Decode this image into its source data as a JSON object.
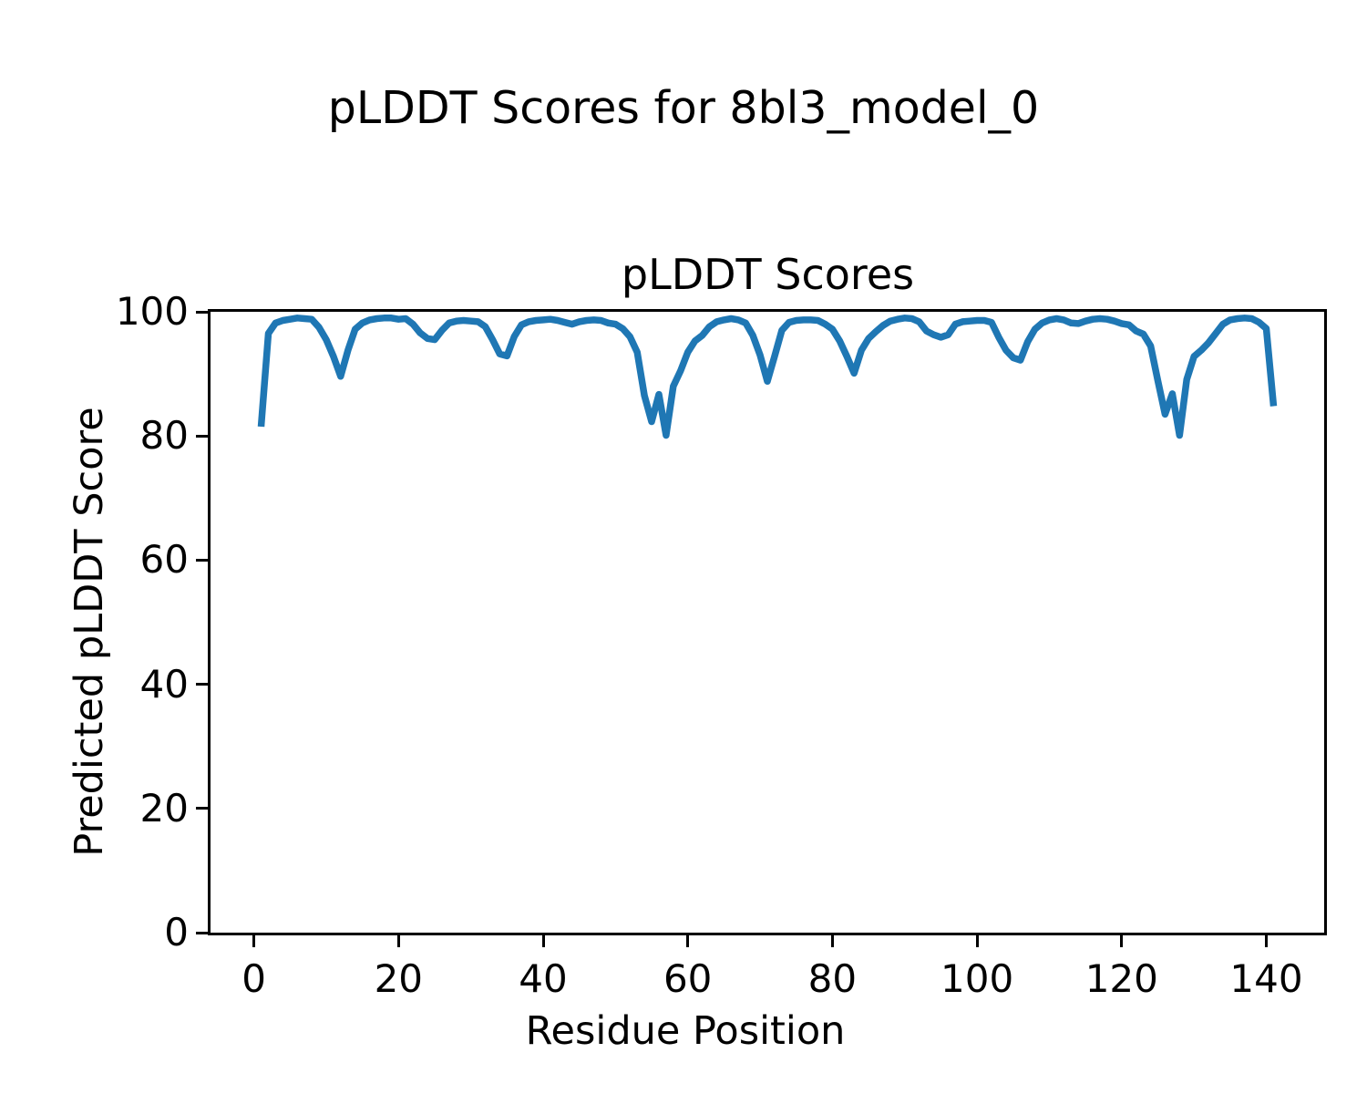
{
  "figure": {
    "suptitle": "pLDDT Scores for 8bl3_model_0",
    "background_color": "#ffffff",
    "text_color": "#000000"
  },
  "chart_data": {
    "type": "line",
    "title": "pLDDT Scores",
    "xlabel": "Residue Position",
    "ylabel": "Predicted pLDDT Score",
    "xlim": [
      -6,
      148
    ],
    "ylim": [
      0,
      100
    ],
    "xticks": [
      0,
      20,
      40,
      60,
      80,
      100,
      120,
      140
    ],
    "yticks": [
      0,
      20,
      40,
      60,
      80,
      100
    ],
    "grid": false,
    "legend_position": "none",
    "line_color": "#1f77b4",
    "line_width": 7.5,
    "series": [
      {
        "name": "pLDDT",
        "x": [
          1,
          2,
          3,
          4,
          5,
          6,
          7,
          8,
          9,
          10,
          11,
          12,
          13,
          14,
          15,
          16,
          17,
          18,
          19,
          20,
          21,
          22,
          23,
          24,
          25,
          26,
          27,
          28,
          29,
          30,
          31,
          32,
          33,
          34,
          35,
          36,
          37,
          38,
          39,
          40,
          41,
          42,
          43,
          44,
          45,
          46,
          47,
          48,
          49,
          50,
          51,
          52,
          53,
          54,
          55,
          56,
          57,
          58,
          59,
          60,
          61,
          62,
          63,
          64,
          65,
          66,
          67,
          68,
          69,
          70,
          71,
          72,
          73,
          74,
          75,
          76,
          77,
          78,
          79,
          80,
          81,
          82,
          83,
          84,
          85,
          86,
          87,
          88,
          89,
          90,
          91,
          92,
          93,
          94,
          95,
          96,
          97,
          98,
          99,
          100,
          101,
          102,
          103,
          104,
          105,
          106,
          107,
          108,
          109,
          110,
          111,
          112,
          113,
          114,
          115,
          116,
          117,
          118,
          119,
          120,
          121,
          122,
          123,
          124,
          125,
          126,
          127,
          128,
          129,
          130,
          131,
          132,
          133,
          134,
          135,
          136,
          137,
          138,
          139,
          140,
          141
        ],
        "values": [
          81.5,
          96.5,
          98.2,
          98.6,
          98.8,
          99.0,
          98.9,
          98.8,
          97.5,
          95.5,
          92.8,
          89.6,
          93.8,
          97.2,
          98.2,
          98.7,
          98.9,
          99.0,
          99.0,
          98.8,
          98.9,
          98.0,
          96.6,
          95.7,
          95.5,
          97.0,
          98.2,
          98.5,
          98.6,
          98.5,
          98.4,
          97.6,
          95.5,
          93.2,
          92.9,
          96.0,
          97.9,
          98.4,
          98.6,
          98.7,
          98.8,
          98.6,
          98.3,
          98.0,
          98.4,
          98.6,
          98.7,
          98.6,
          98.2,
          98.0,
          97.3,
          96.0,
          93.5,
          86.5,
          82.3,
          86.7,
          80.1,
          88.0,
          90.5,
          93.5,
          95.3,
          96.2,
          97.6,
          98.4,
          98.7,
          98.9,
          98.7,
          98.2,
          96.2,
          93.0,
          88.8,
          92.8,
          97.0,
          98.3,
          98.6,
          98.7,
          98.7,
          98.6,
          98.0,
          97.2,
          95.3,
          92.8,
          90.1,
          93.8,
          95.7,
          96.8,
          97.8,
          98.5,
          98.8,
          99.0,
          98.9,
          98.4,
          96.9,
          96.3,
          95.9,
          96.3,
          98.0,
          98.4,
          98.5,
          98.6,
          98.6,
          98.3,
          95.9,
          93.8,
          92.6,
          92.2,
          95.2,
          97.2,
          98.2,
          98.7,
          98.9,
          98.7,
          98.2,
          98.1,
          98.5,
          98.8,
          98.9,
          98.8,
          98.5,
          98.1,
          97.9,
          96.9,
          96.4,
          94.5,
          88.9,
          83.5,
          86.8,
          80.1,
          89.1,
          92.8,
          93.8,
          95.0,
          96.5,
          98.0,
          98.7,
          98.9,
          99.0,
          98.9,
          98.3,
          97.3,
          84.8
        ]
      }
    ]
  }
}
